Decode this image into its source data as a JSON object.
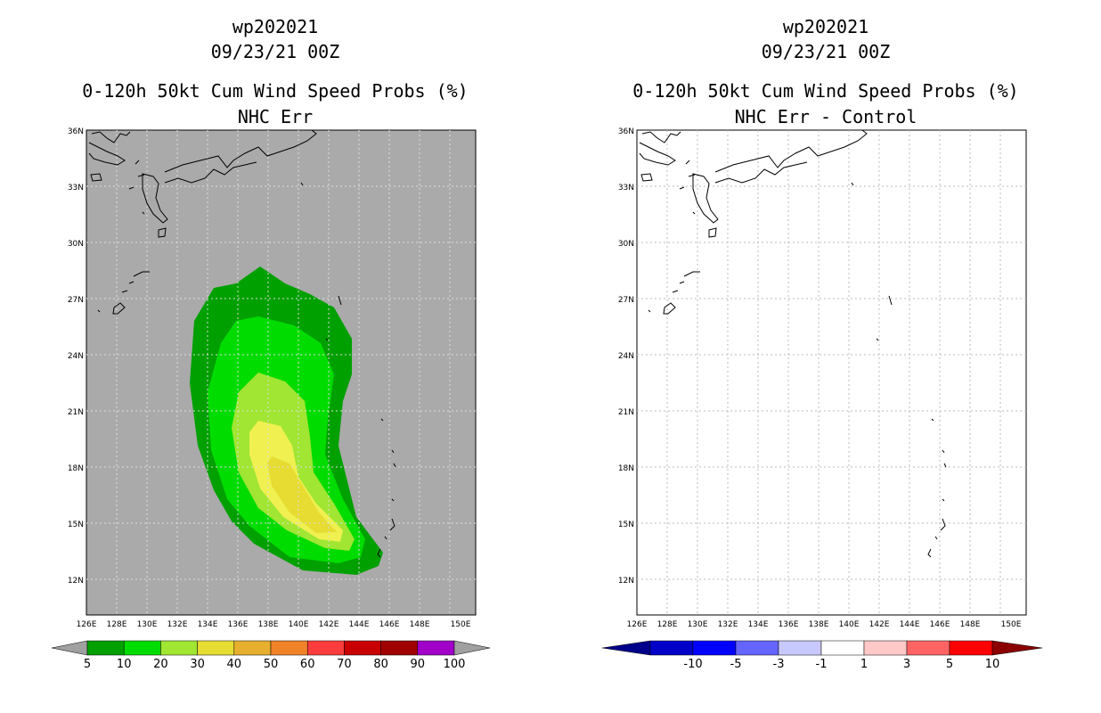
{
  "left": {
    "title_line1": "wp202021",
    "title_line2": "09/23/21 00Z",
    "title_line3": "0-120h 50kt Cum Wind Speed Probs (%)",
    "title_line4": "NHC Err",
    "lat_labels": [
      "36N",
      "33N",
      "30N",
      "27N",
      "24N",
      "21N",
      "18N",
      "15N",
      "12N"
    ],
    "lon_labels": [
      "126E",
      "128E",
      "130E",
      "132E",
      "134E",
      "136E",
      "138E",
      "140E",
      "142E",
      "144E",
      "146E",
      "148E",
      "150E"
    ],
    "colorbar": {
      "labels": [
        "5",
        "10",
        "20",
        "30",
        "40",
        "50",
        "60",
        "70",
        "80",
        "90",
        "100"
      ],
      "colors": [
        "#00a000",
        "#00dc00",
        "#a0e632",
        "#e6dc32",
        "#e6af2d",
        "#f08228",
        "#fa3c3c",
        "#c80000",
        "#a00000",
        "#a000c8"
      ],
      "end_color": "#a0a0a0"
    }
  },
  "right": {
    "title_line1": "wp202021",
    "title_line2": "09/23/21 00Z",
    "title_line3": "0-120h 50kt Cum Wind Speed Probs (%)",
    "title_line4": "NHC Err - Control",
    "lat_labels": [
      "36N",
      "33N",
      "30N",
      "27N",
      "24N",
      "21N",
      "18N",
      "15N",
      "12N"
    ],
    "lon_labels": [
      "126E",
      "128E",
      "130E",
      "132E",
      "134E",
      "136E",
      "138E",
      "140E",
      "142E",
      "144E",
      "146E",
      "148E",
      "150E"
    ],
    "colorbar": {
      "labels": [
        "-10",
        "-5",
        "-3",
        "-1",
        "1",
        "3",
        "5",
        "10"
      ],
      "colors": [
        "#0000c8",
        "#0000ff",
        "#6464ff",
        "#c8c8ff",
        "#ffffff",
        "#ffc8c8",
        "#ff6464",
        "#ff0000"
      ],
      "low_end_color": "#00008b",
      "high_end_color": "#8b0000"
    }
  }
}
